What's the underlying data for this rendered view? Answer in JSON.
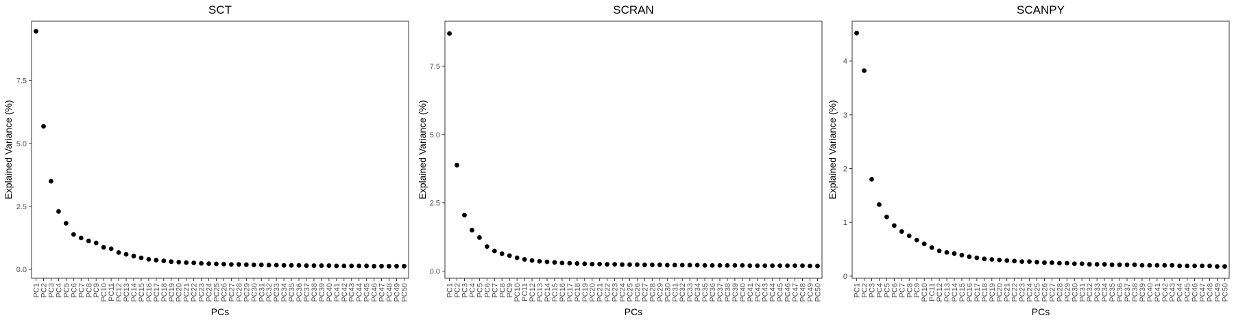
{
  "chart_data": [
    {
      "type": "scatter",
      "title": "SCT",
      "xlabel": "PCs",
      "ylabel": "Explained Variance (%)",
      "categories": [
        "PC1",
        "PC2",
        "PC3",
        "PC4",
        "PC5",
        "PC6",
        "PC7",
        "PC8",
        "PC9",
        "PC10",
        "PC11",
        "PC12",
        "PC13",
        "PC14",
        "PC15",
        "PC16",
        "PC17",
        "PC18",
        "PC19",
        "PC20",
        "PC21",
        "PC22",
        "PC23",
        "PC24",
        "PC25",
        "PC26",
        "PC27",
        "PC28",
        "PC29",
        "PC30",
        "PC31",
        "PC32",
        "PC33",
        "PC34",
        "PC35",
        "PC36",
        "PC37",
        "PC38",
        "PC39",
        "PC40",
        "PC41",
        "PC42",
        "PC43",
        "PC44",
        "PC45",
        "PC46",
        "PC47",
        "PC48",
        "PC49",
        "PC50"
      ],
      "values": [
        9.45,
        5.68,
        3.5,
        2.3,
        1.83,
        1.39,
        1.25,
        1.13,
        1.05,
        0.88,
        0.82,
        0.67,
        0.6,
        0.53,
        0.46,
        0.4,
        0.37,
        0.34,
        0.31,
        0.29,
        0.27,
        0.26,
        0.24,
        0.23,
        0.22,
        0.21,
        0.2,
        0.2,
        0.19,
        0.18,
        0.18,
        0.17,
        0.17,
        0.16,
        0.16,
        0.16,
        0.15,
        0.15,
        0.15,
        0.15,
        0.14,
        0.14,
        0.14,
        0.14,
        0.14,
        0.13,
        0.13,
        0.13,
        0.13,
        0.13
      ],
      "ylim": [
        -0.35,
        9.85
      ],
      "yticks": [
        0.0,
        2.5,
        5.0,
        7.5
      ],
      "yticklabels": [
        "0.0",
        "2.5",
        "5.0",
        "7.5"
      ],
      "grid": false
    },
    {
      "type": "scatter",
      "title": "SCRAN",
      "xlabel": "PCs",
      "ylabel": "Explained Variance (%)",
      "categories": [
        "PC1",
        "PC2",
        "PC3",
        "PC4",
        "PC5",
        "PC6",
        "PC7",
        "PC8",
        "PC9",
        "PC10",
        "PC11",
        "PC12",
        "PC13",
        "PC14",
        "PC15",
        "PC16",
        "PC17",
        "PC18",
        "PC19",
        "PC20",
        "PC21",
        "PC22",
        "PC23",
        "PC24",
        "PC25",
        "PC26",
        "PC27",
        "PC28",
        "PC29",
        "PC30",
        "PC31",
        "PC32",
        "PC33",
        "PC34",
        "PC35",
        "PC36",
        "PC37",
        "PC38",
        "PC39",
        "PC40",
        "PC41",
        "PC42",
        "PC43",
        "PC44",
        "PC45",
        "PC46",
        "PC47",
        "PC48",
        "PC49",
        "PC50"
      ],
      "values": [
        8.7,
        3.88,
        2.05,
        1.5,
        1.23,
        0.9,
        0.74,
        0.64,
        0.57,
        0.49,
        0.43,
        0.39,
        0.36,
        0.34,
        0.32,
        0.3,
        0.29,
        0.28,
        0.27,
        0.26,
        0.26,
        0.25,
        0.25,
        0.24,
        0.24,
        0.24,
        0.23,
        0.23,
        0.23,
        0.22,
        0.22,
        0.22,
        0.22,
        0.22,
        0.21,
        0.21,
        0.21,
        0.21,
        0.21,
        0.21,
        0.2,
        0.2,
        0.2,
        0.2,
        0.2,
        0.2,
        0.2,
        0.2,
        0.19,
        0.19
      ],
      "ylim": [
        -0.26,
        9.15
      ],
      "yticks": [
        0.0,
        2.5,
        5.0,
        7.5
      ],
      "yticklabels": [
        "0.0",
        "2.5",
        "5.0",
        "7.5"
      ],
      "grid": false
    },
    {
      "type": "scatter",
      "title": "SCANPY",
      "xlabel": "PCs",
      "ylabel": "Explained Variance (%)",
      "categories": [
        "PC1",
        "PC2",
        "PC3",
        "PC4",
        "PC5",
        "PC6",
        "PC7",
        "PC8",
        "PC9",
        "PC10",
        "PC11",
        "PC12",
        "PC13",
        "PC14",
        "PC15",
        "PC16",
        "PC17",
        "PC18",
        "PC19",
        "PC20",
        "PC21",
        "PC22",
        "PC23",
        "PC24",
        "PC25",
        "PC26",
        "PC27",
        "PC28",
        "PC29",
        "PC30",
        "PC31",
        "PC32",
        "PC33",
        "PC34",
        "PC35",
        "PC36",
        "PC37",
        "PC38",
        "PC39",
        "PC40",
        "PC41",
        "PC42",
        "PC43",
        "PC44",
        "PC45",
        "PC46",
        "PC47",
        "PC48",
        "PC49",
        "PC50"
      ],
      "values": [
        4.52,
        3.82,
        1.8,
        1.33,
        1.1,
        0.94,
        0.83,
        0.75,
        0.67,
        0.6,
        0.53,
        0.47,
        0.44,
        0.42,
        0.39,
        0.36,
        0.34,
        0.32,
        0.31,
        0.3,
        0.29,
        0.28,
        0.27,
        0.27,
        0.26,
        0.25,
        0.25,
        0.24,
        0.24,
        0.23,
        0.23,
        0.22,
        0.22,
        0.22,
        0.21,
        0.21,
        0.21,
        0.21,
        0.2,
        0.2,
        0.2,
        0.2,
        0.2,
        0.19,
        0.19,
        0.19,
        0.19,
        0.19,
        0.18,
        0.18
      ],
      "ylim": [
        -0.04,
        4.74
      ],
      "yticks": [
        0,
        1,
        2,
        3,
        4
      ],
      "yticklabels": [
        "0",
        "1",
        "2",
        "3",
        "4"
      ],
      "grid": false
    }
  ],
  "style": {
    "point_color": "#000000",
    "frame_color": "#333333",
    "tick_label_color": "#4d4d4d",
    "background": "#ffffff"
  }
}
